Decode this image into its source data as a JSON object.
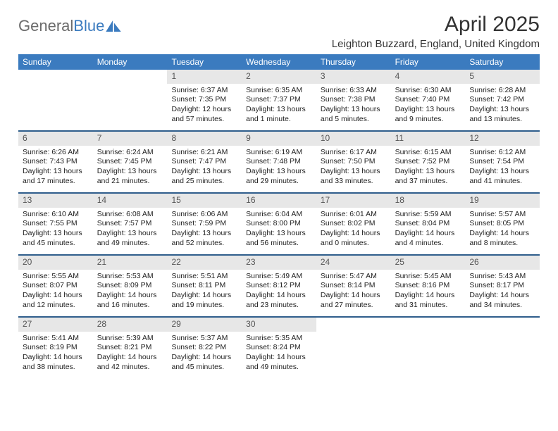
{
  "logo": {
    "text_gray": "General",
    "text_blue": "Blue"
  },
  "month_title": "April 2025",
  "location": "Leighton Buzzard, England, United Kingdom",
  "colors": {
    "header_bg": "#3b7bbf",
    "week_border": "#2f5e8c",
    "daynum_bg": "#e7e7e7",
    "text": "#222222"
  },
  "weekdays": [
    "Sunday",
    "Monday",
    "Tuesday",
    "Wednesday",
    "Thursday",
    "Friday",
    "Saturday"
  ],
  "weeks": [
    [
      {
        "num": "",
        "lines": []
      },
      {
        "num": "",
        "lines": []
      },
      {
        "num": "1",
        "lines": [
          "Sunrise: 6:37 AM",
          "Sunset: 7:35 PM",
          "Daylight: 12 hours and 57 minutes."
        ]
      },
      {
        "num": "2",
        "lines": [
          "Sunrise: 6:35 AM",
          "Sunset: 7:37 PM",
          "Daylight: 13 hours and 1 minute."
        ]
      },
      {
        "num": "3",
        "lines": [
          "Sunrise: 6:33 AM",
          "Sunset: 7:38 PM",
          "Daylight: 13 hours and 5 minutes."
        ]
      },
      {
        "num": "4",
        "lines": [
          "Sunrise: 6:30 AM",
          "Sunset: 7:40 PM",
          "Daylight: 13 hours and 9 minutes."
        ]
      },
      {
        "num": "5",
        "lines": [
          "Sunrise: 6:28 AM",
          "Sunset: 7:42 PM",
          "Daylight: 13 hours and 13 minutes."
        ]
      }
    ],
    [
      {
        "num": "6",
        "lines": [
          "Sunrise: 6:26 AM",
          "Sunset: 7:43 PM",
          "Daylight: 13 hours and 17 minutes."
        ]
      },
      {
        "num": "7",
        "lines": [
          "Sunrise: 6:24 AM",
          "Sunset: 7:45 PM",
          "Daylight: 13 hours and 21 minutes."
        ]
      },
      {
        "num": "8",
        "lines": [
          "Sunrise: 6:21 AM",
          "Sunset: 7:47 PM",
          "Daylight: 13 hours and 25 minutes."
        ]
      },
      {
        "num": "9",
        "lines": [
          "Sunrise: 6:19 AM",
          "Sunset: 7:48 PM",
          "Daylight: 13 hours and 29 minutes."
        ]
      },
      {
        "num": "10",
        "lines": [
          "Sunrise: 6:17 AM",
          "Sunset: 7:50 PM",
          "Daylight: 13 hours and 33 minutes."
        ]
      },
      {
        "num": "11",
        "lines": [
          "Sunrise: 6:15 AM",
          "Sunset: 7:52 PM",
          "Daylight: 13 hours and 37 minutes."
        ]
      },
      {
        "num": "12",
        "lines": [
          "Sunrise: 6:12 AM",
          "Sunset: 7:54 PM",
          "Daylight: 13 hours and 41 minutes."
        ]
      }
    ],
    [
      {
        "num": "13",
        "lines": [
          "Sunrise: 6:10 AM",
          "Sunset: 7:55 PM",
          "Daylight: 13 hours and 45 minutes."
        ]
      },
      {
        "num": "14",
        "lines": [
          "Sunrise: 6:08 AM",
          "Sunset: 7:57 PM",
          "Daylight: 13 hours and 49 minutes."
        ]
      },
      {
        "num": "15",
        "lines": [
          "Sunrise: 6:06 AM",
          "Sunset: 7:59 PM",
          "Daylight: 13 hours and 52 minutes."
        ]
      },
      {
        "num": "16",
        "lines": [
          "Sunrise: 6:04 AM",
          "Sunset: 8:00 PM",
          "Daylight: 13 hours and 56 minutes."
        ]
      },
      {
        "num": "17",
        "lines": [
          "Sunrise: 6:01 AM",
          "Sunset: 8:02 PM",
          "Daylight: 14 hours and 0 minutes."
        ]
      },
      {
        "num": "18",
        "lines": [
          "Sunrise: 5:59 AM",
          "Sunset: 8:04 PM",
          "Daylight: 14 hours and 4 minutes."
        ]
      },
      {
        "num": "19",
        "lines": [
          "Sunrise: 5:57 AM",
          "Sunset: 8:05 PM",
          "Daylight: 14 hours and 8 minutes."
        ]
      }
    ],
    [
      {
        "num": "20",
        "lines": [
          "Sunrise: 5:55 AM",
          "Sunset: 8:07 PM",
          "Daylight: 14 hours and 12 minutes."
        ]
      },
      {
        "num": "21",
        "lines": [
          "Sunrise: 5:53 AM",
          "Sunset: 8:09 PM",
          "Daylight: 14 hours and 16 minutes."
        ]
      },
      {
        "num": "22",
        "lines": [
          "Sunrise: 5:51 AM",
          "Sunset: 8:11 PM",
          "Daylight: 14 hours and 19 minutes."
        ]
      },
      {
        "num": "23",
        "lines": [
          "Sunrise: 5:49 AM",
          "Sunset: 8:12 PM",
          "Daylight: 14 hours and 23 minutes."
        ]
      },
      {
        "num": "24",
        "lines": [
          "Sunrise: 5:47 AM",
          "Sunset: 8:14 PM",
          "Daylight: 14 hours and 27 minutes."
        ]
      },
      {
        "num": "25",
        "lines": [
          "Sunrise: 5:45 AM",
          "Sunset: 8:16 PM",
          "Daylight: 14 hours and 31 minutes."
        ]
      },
      {
        "num": "26",
        "lines": [
          "Sunrise: 5:43 AM",
          "Sunset: 8:17 PM",
          "Daylight: 14 hours and 34 minutes."
        ]
      }
    ],
    [
      {
        "num": "27",
        "lines": [
          "Sunrise: 5:41 AM",
          "Sunset: 8:19 PM",
          "Daylight: 14 hours and 38 minutes."
        ]
      },
      {
        "num": "28",
        "lines": [
          "Sunrise: 5:39 AM",
          "Sunset: 8:21 PM",
          "Daylight: 14 hours and 42 minutes."
        ]
      },
      {
        "num": "29",
        "lines": [
          "Sunrise: 5:37 AM",
          "Sunset: 8:22 PM",
          "Daylight: 14 hours and 45 minutes."
        ]
      },
      {
        "num": "30",
        "lines": [
          "Sunrise: 5:35 AM",
          "Sunset: 8:24 PM",
          "Daylight: 14 hours and 49 minutes."
        ]
      },
      {
        "num": "",
        "lines": []
      },
      {
        "num": "",
        "lines": []
      },
      {
        "num": "",
        "lines": []
      }
    ]
  ]
}
